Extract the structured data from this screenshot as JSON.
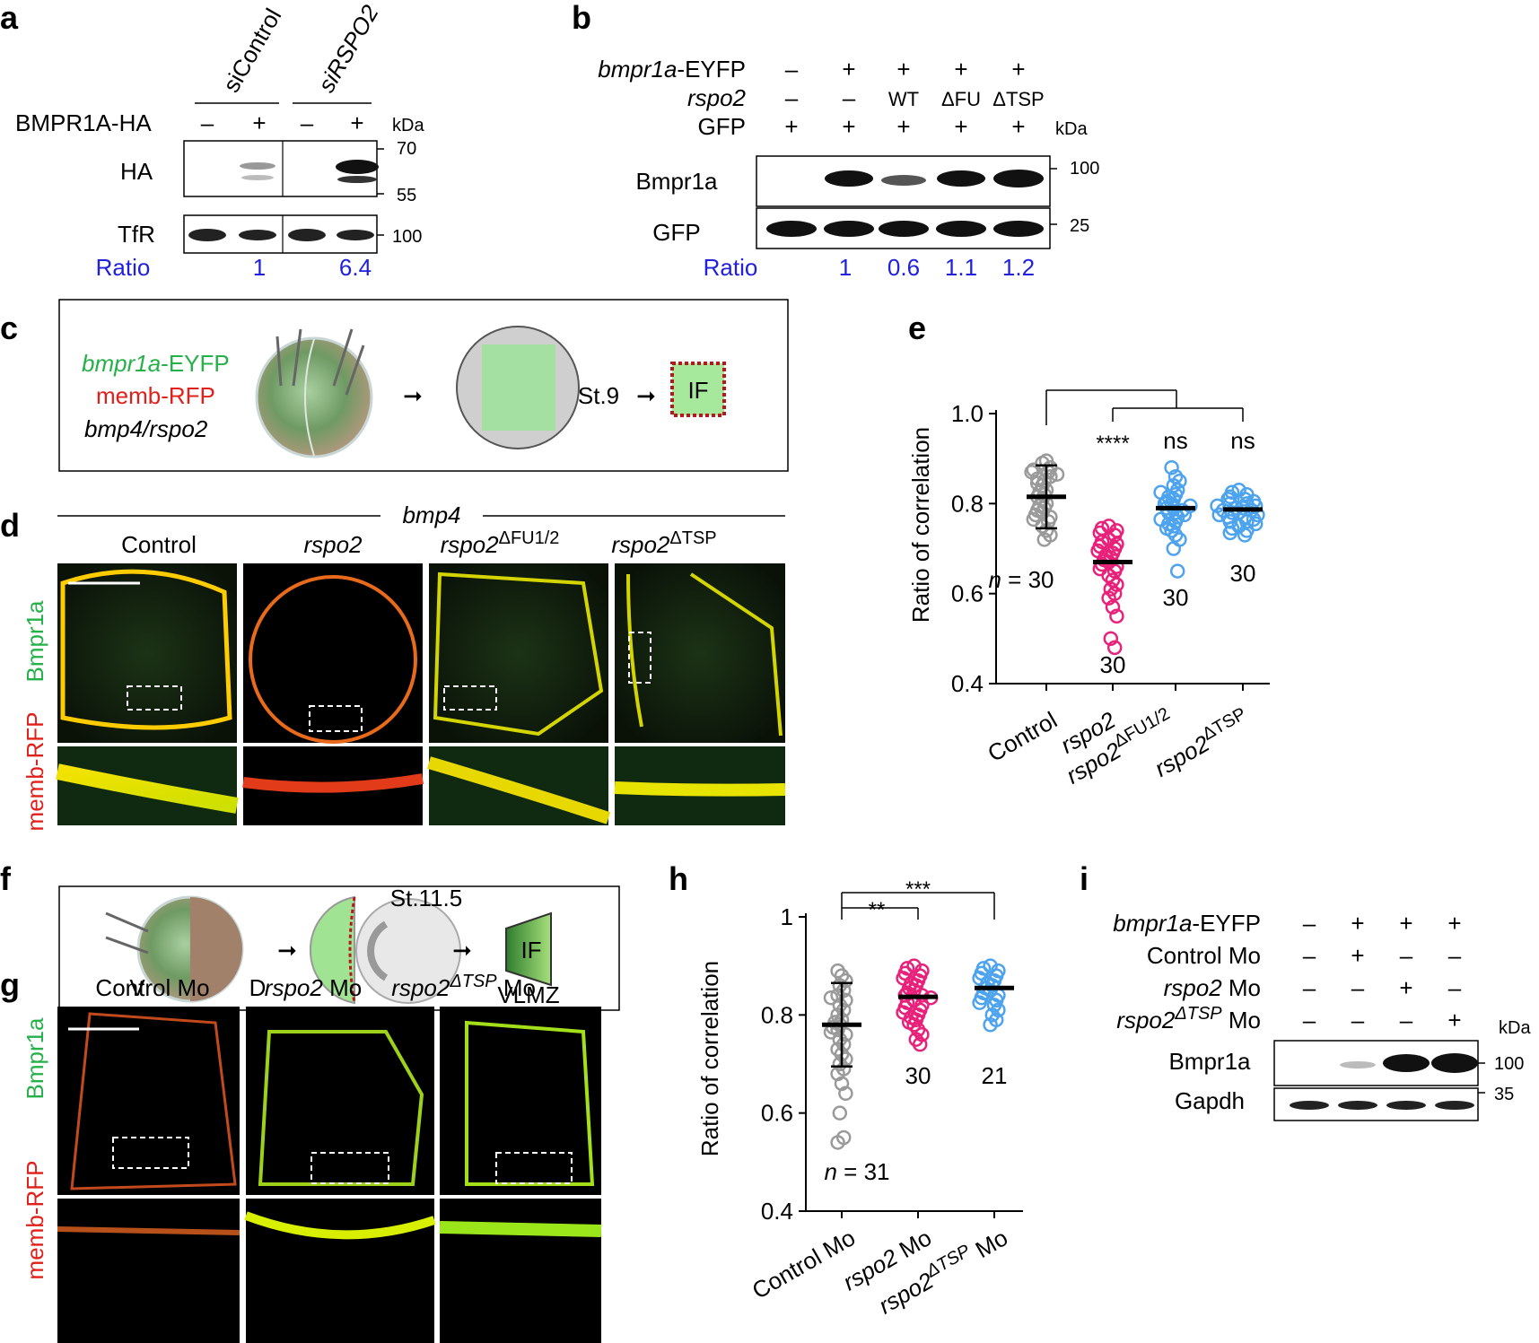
{
  "panel_labels": [
    "a",
    "b",
    "c",
    "d",
    "e",
    "f",
    "g",
    "h",
    "i"
  ],
  "colors": {
    "ratio_blue": "#2020dd",
    "control_gray": "#9a9a9a",
    "rspo2_pink": "#e8217a",
    "mutant_blue": "#4da3ee",
    "green_label": "#26b04a",
    "red_label": "#e0201a"
  },
  "a": {
    "lanes_sets": [
      "siControl",
      "siRSPO2"
    ],
    "row_label": "BMPR1A-HA",
    "lane_signs": [
      "–",
      "+",
      "–",
      "+"
    ],
    "kda": "kDa",
    "blots": [
      "HA",
      "TfR"
    ],
    "markers": [
      "70",
      "55",
      "100"
    ],
    "ratio_label": "Ratio",
    "ratio_values": [
      "1",
      "6.4"
    ]
  },
  "b": {
    "rows": [
      {
        "label": "bmpr1a-EYFP",
        "signs": [
          "–",
          "+",
          "+",
          "+",
          "+"
        ]
      },
      {
        "label": "rspo2",
        "signs": [
          "–",
          "–",
          "WT",
          "ΔFU",
          "ΔTSP"
        ]
      },
      {
        "label": "GFP",
        "signs": [
          "+",
          "+",
          "+",
          "+",
          "+"
        ]
      }
    ],
    "kda": "kDa",
    "blots": [
      "Bmpr1a",
      "GFP"
    ],
    "markers": [
      "100",
      "25"
    ],
    "ratio_label": "Ratio",
    "ratio_values": [
      "1",
      "0.6",
      "1.1",
      "1.2"
    ]
  },
  "c": {
    "inject_labels": [
      "bmpr1a-EYFP",
      "memb-RFP",
      "bmp4/rspo2"
    ],
    "stage": "St.9",
    "readout": "IF"
  },
  "d": {
    "header": "bmp4",
    "columns": [
      "Control",
      "rspo2",
      "rspo2ΔFU1/2",
      "rspo2ΔTSP"
    ],
    "side_label_green": "Bmpr1a",
    "side_label_red": "memb-RFP"
  },
  "f": {
    "labels_vd": [
      "V",
      "D"
    ],
    "stage": "St.11.5",
    "readout": "IF",
    "region": "VLMZ"
  },
  "g": {
    "columns": [
      "Control Mo",
      "rspo2 Mo",
      "rspo2ΔTSP Mo"
    ],
    "side_label_green": "Bmpr1a",
    "side_label_red": "memb-RFP"
  },
  "i": {
    "rows": [
      {
        "label": "bmpr1a-EYFP",
        "signs": [
          "–",
          "+",
          "+",
          "+"
        ]
      },
      {
        "label": "Control Mo",
        "signs": [
          "–",
          "+",
          "–",
          "–"
        ]
      },
      {
        "label": "rspo2 Mo",
        "signs": [
          "–",
          "–",
          "+",
          "–"
        ]
      },
      {
        "label": "rspo2ΔTSP Mo",
        "signs": [
          "–",
          "–",
          "–",
          "+"
        ]
      }
    ],
    "kda": "kDa",
    "blots": [
      "Bmpr1a",
      "Gapdh"
    ],
    "markers": [
      "100",
      "35"
    ]
  },
  "chart_data": [
    {
      "panel": "e",
      "type": "scatter",
      "ylabel": "Ratio of correlation",
      "ylim": [
        0.4,
        1.0
      ],
      "yticks": [
        0.4,
        0.6,
        0.8,
        1.0
      ],
      "categories": [
        "Control",
        "rspo2",
        "rspo2ΔFU1/2",
        "rspo2ΔTSP"
      ],
      "series": [
        {
          "name": "Control",
          "mean": 0.815,
          "sd_low": 0.745,
          "sd_high": 0.885,
          "n_label": "n = 30",
          "values": [
            0.89,
            0.895,
            0.88,
            0.875,
            0.87,
            0.87,
            0.865,
            0.86,
            0.85,
            0.845,
            0.84,
            0.83,
            0.825,
            0.82,
            0.815,
            0.81,
            0.8,
            0.795,
            0.79,
            0.785,
            0.78,
            0.775,
            0.77,
            0.765,
            0.76,
            0.75,
            0.74,
            0.73,
            0.72,
            0.855
          ]
        },
        {
          "name": "rspo2",
          "mean": 0.67,
          "n_label": "30",
          "significance": "****",
          "values": [
            0.75,
            0.745,
            0.74,
            0.735,
            0.73,
            0.72,
            0.715,
            0.71,
            0.705,
            0.7,
            0.695,
            0.69,
            0.685,
            0.68,
            0.675,
            0.67,
            0.665,
            0.66,
            0.655,
            0.65,
            0.64,
            0.63,
            0.62,
            0.61,
            0.6,
            0.59,
            0.57,
            0.55,
            0.5,
            0.48
          ]
        },
        {
          "name": "rspo2ΔFU1/2",
          "mean": 0.79,
          "n_label": "30",
          "significance": "ns",
          "values": [
            0.88,
            0.86,
            0.85,
            0.84,
            0.83,
            0.825,
            0.82,
            0.815,
            0.81,
            0.805,
            0.8,
            0.8,
            0.795,
            0.79,
            0.79,
            0.785,
            0.78,
            0.78,
            0.775,
            0.77,
            0.765,
            0.76,
            0.755,
            0.75,
            0.745,
            0.74,
            0.73,
            0.72,
            0.7,
            0.65
          ]
        },
        {
          "name": "rspo2ΔTSP",
          "mean": 0.787,
          "n_label": "30",
          "significance": "ns",
          "values": [
            0.83,
            0.825,
            0.82,
            0.815,
            0.81,
            0.81,
            0.805,
            0.8,
            0.8,
            0.795,
            0.795,
            0.79,
            0.79,
            0.785,
            0.785,
            0.78,
            0.78,
            0.775,
            0.775,
            0.77,
            0.77,
            0.765,
            0.76,
            0.76,
            0.755,
            0.75,
            0.745,
            0.74,
            0.735,
            0.73
          ]
        }
      ]
    },
    {
      "panel": "h",
      "type": "scatter",
      "ylabel": "Ratio of correlation",
      "ylim": [
        0.4,
        1.0
      ],
      "yticks": [
        0.4,
        0.6,
        0.8,
        1.0
      ],
      "ytick_labels": [
        "0.4",
        "0.6",
        "0.8",
        "1"
      ],
      "categories": [
        "Control Mo",
        "rspo2 Mo",
        "rspo2ΔTSP Mo"
      ],
      "significance": [
        {
          "pair": [
            0,
            1
          ],
          "label": "**"
        },
        {
          "pair": [
            0,
            2
          ],
          "label": "***"
        }
      ],
      "series": [
        {
          "name": "Control Mo",
          "mean": 0.78,
          "sd_low": 0.695,
          "sd_high": 0.865,
          "n_label": "n = 31",
          "values": [
            0.89,
            0.88,
            0.87,
            0.86,
            0.85,
            0.84,
            0.835,
            0.83,
            0.82,
            0.81,
            0.8,
            0.79,
            0.785,
            0.78,
            0.775,
            0.77,
            0.765,
            0.76,
            0.75,
            0.74,
            0.73,
            0.72,
            0.71,
            0.7,
            0.69,
            0.68,
            0.66,
            0.64,
            0.6,
            0.55,
            0.54
          ]
        },
        {
          "name": "rspo2 Mo",
          "mean": 0.837,
          "n_label": "30",
          "values": [
            0.9,
            0.895,
            0.89,
            0.885,
            0.88,
            0.875,
            0.87,
            0.865,
            0.86,
            0.855,
            0.85,
            0.845,
            0.84,
            0.84,
            0.835,
            0.83,
            0.825,
            0.82,
            0.815,
            0.81,
            0.805,
            0.8,
            0.795,
            0.79,
            0.785,
            0.78,
            0.77,
            0.76,
            0.75,
            0.74
          ]
        },
        {
          "name": "rspo2ΔTSP Mo",
          "mean": 0.855,
          "n_label": "21",
          "values": [
            0.9,
            0.895,
            0.89,
            0.885,
            0.88,
            0.875,
            0.87,
            0.865,
            0.86,
            0.855,
            0.85,
            0.845,
            0.84,
            0.835,
            0.83,
            0.825,
            0.82,
            0.81,
            0.8,
            0.79,
            0.78
          ]
        }
      ]
    }
  ]
}
